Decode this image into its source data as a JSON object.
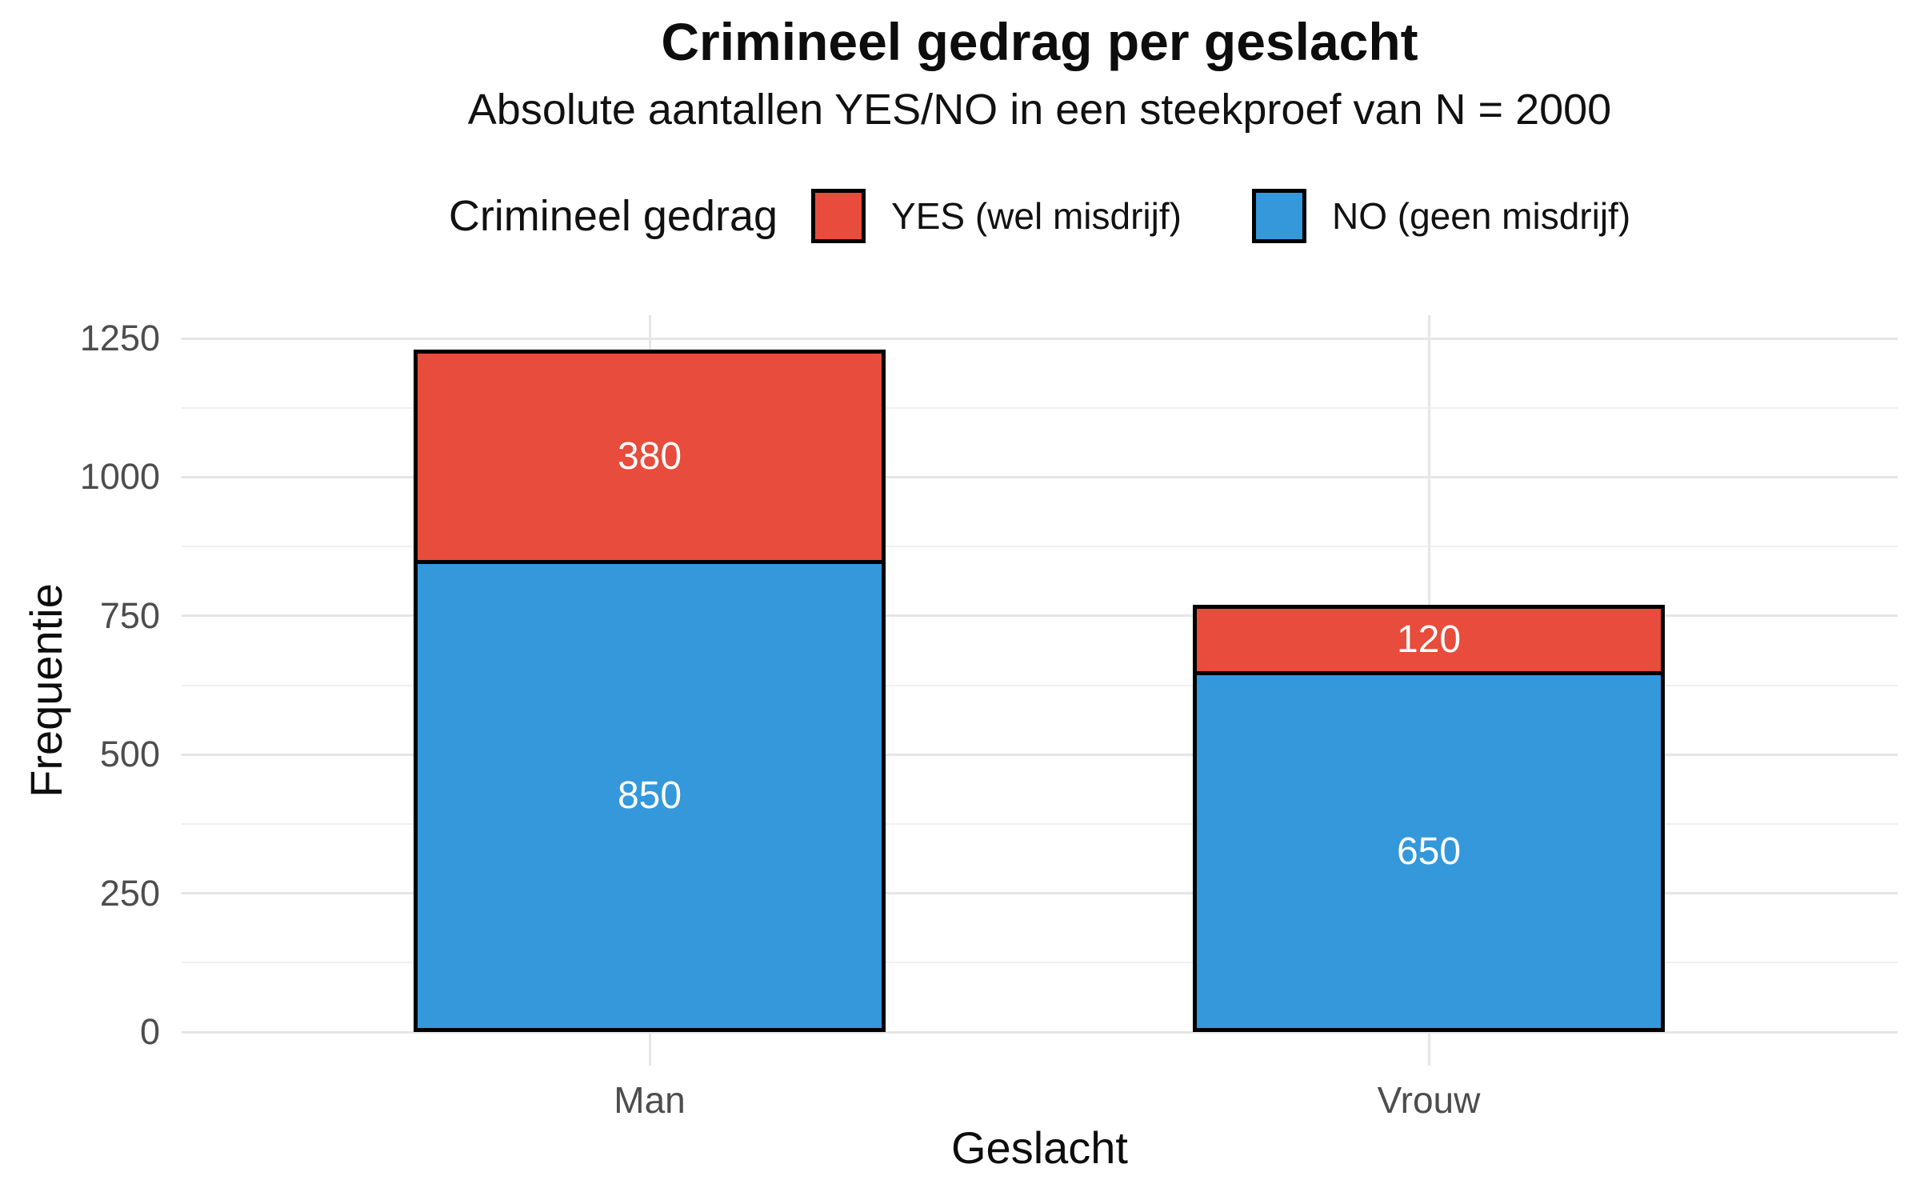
{
  "chart_data": {
    "type": "bar",
    "stacked": true,
    "title": "Crimineel gedrag per geslacht",
    "subtitle": "Absolute aantallen YES/NO in een steekproef van N = 2000",
    "xlabel": "Geslacht",
    "ylabel": "Frequentie",
    "legend_title": "Crimineel gedrag",
    "legend_position": "top",
    "categories": [
      "Man",
      "Vrouw"
    ],
    "series": [
      {
        "name": "YES (wel misdrijf)",
        "color": "#E74C3C",
        "values": [
          380,
          120
        ]
      },
      {
        "name": "NO (geen misdrijf)",
        "color": "#3498DB",
        "values": [
          850,
          650
        ]
      }
    ],
    "stack_note": "series are stacked bottom-to-top in reverse listed order (NO on bottom, YES on top)",
    "bar_totals": [
      1230,
      770
    ],
    "bar_labels_shown": true,
    "y_ticks": [
      0,
      250,
      500,
      750,
      1000,
      1250
    ],
    "ylim": [
      0,
      1250
    ],
    "grid": "major and minor horizontal gridlines, major vertical gridline at each category",
    "text_colors": {
      "tick_labels": "#4d4d4d",
      "titles": "#0d0d0d",
      "bar_labels": "#ffffff"
    },
    "grid_colors": {
      "major": "#e6e6e6",
      "minor": "#f0f0f0"
    }
  }
}
